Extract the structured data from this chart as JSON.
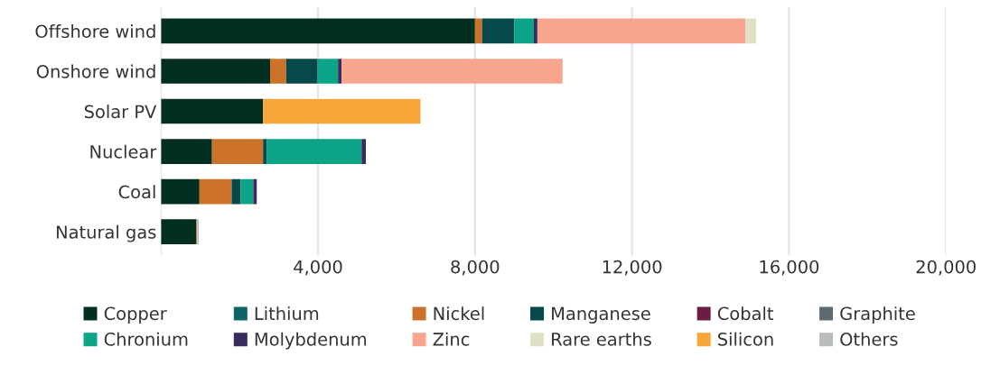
{
  "chart_data": {
    "type": "bar",
    "orientation": "horizontal",
    "stacked": true,
    "categories": [
      "Offshore wind",
      "Onshore wind",
      "Solar PV",
      "Nuclear",
      "Coal",
      "Natural gas"
    ],
    "series": [
      {
        "name": "Copper",
        "color": "#022f22",
        "values": [
          8000,
          2780,
          2600,
          1300,
          980,
          900
        ]
      },
      {
        "name": "Lithium",
        "color": "#0f6468",
        "values": [
          0,
          0,
          0,
          0,
          0,
          0
        ]
      },
      {
        "name": "Nickel",
        "color": "#cc7229",
        "values": [
          180,
          410,
          0,
          1300,
          820,
          20
        ]
      },
      {
        "name": "Manganese",
        "color": "#07484a",
        "values": [
          820,
          800,
          0,
          90,
          230,
          0
        ]
      },
      {
        "name": "Cobalt",
        "color": "#6b1d45",
        "values": [
          0,
          0,
          0,
          0,
          0,
          0
        ]
      },
      {
        "name": "Graphite",
        "color": "#5c6b70",
        "values": [
          0,
          0,
          0,
          0,
          0,
          0
        ]
      },
      {
        "name": "Chronium",
        "color": "#0ba487",
        "values": [
          500,
          520,
          0,
          2420,
          320,
          0
        ]
      },
      {
        "name": "Molybdenum",
        "color": "#3a2a5e",
        "values": [
          90,
          90,
          0,
          110,
          90,
          0
        ]
      },
      {
        "name": "Zinc",
        "color": "#f8a590",
        "values": [
          5300,
          5630,
          0,
          0,
          0,
          0
        ]
      },
      {
        "name": "Rare earths",
        "color": "#e0e0c6",
        "values": [
          270,
          0,
          0,
          0,
          0,
          0
        ]
      },
      {
        "name": "Silicon",
        "color": "#f7a739",
        "values": [
          0,
          0,
          4010,
          0,
          0,
          0
        ]
      },
      {
        "name": "Others",
        "color": "#b8bcbc",
        "values": [
          0,
          0,
          0,
          0,
          0,
          40
        ]
      }
    ],
    "xlim": [
      0,
      20000
    ],
    "xticks": [
      {
        "value": 0,
        "label": null
      },
      {
        "value": 4000,
        "label": "4,000"
      },
      {
        "value": 8000,
        "label": "8,000"
      },
      {
        "value": 12000,
        "label": "12,000"
      },
      {
        "value": 16000,
        "label": "16,000"
      },
      {
        "value": 20000,
        "label": "20,000"
      }
    ],
    "grid": "x",
    "legend": "bottom"
  }
}
